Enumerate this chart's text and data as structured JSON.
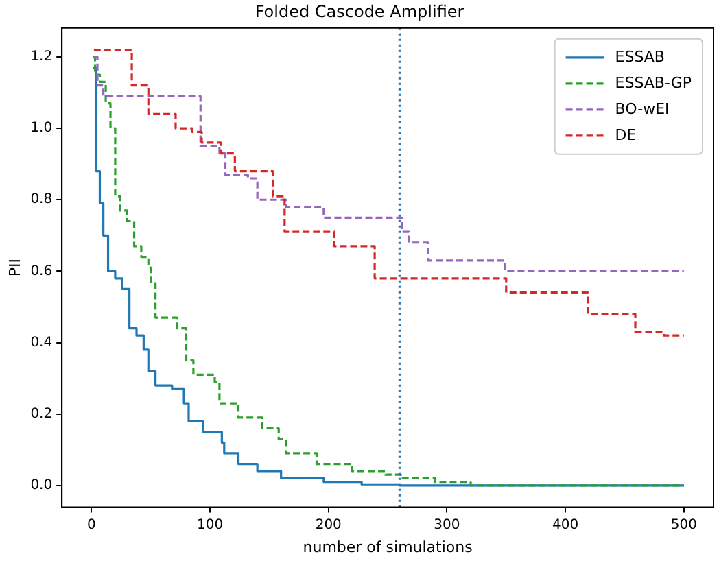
{
  "chart_data": {
    "type": "step",
    "title": "Folded Cascode Amplifier",
    "xlabel": "number of simulations",
    "ylabel": "PII",
    "xlim": [
      -25,
      525
    ],
    "xticks": [
      0,
      100,
      200,
      300,
      400,
      500
    ],
    "ylim": [
      -0.061,
      1.281
    ],
    "yticks": [
      {
        "value": 0,
        "label": "0.0"
      },
      {
        "value": 0.2,
        "label": "0.2"
      },
      {
        "value": 0.4,
        "label": "0.4"
      },
      {
        "value": 0.6,
        "label": "0.6"
      },
      {
        "value": 0.8,
        "label": "0.8"
      },
      {
        "value": 1,
        "label": "1.0"
      },
      {
        "value": 1.2,
        "label": "1.2"
      }
    ],
    "grid": false,
    "legend": "top right",
    "marker": "none",
    "ref_lines": [
      {
        "axis": "x",
        "value": 260,
        "color": "#1f77b4",
        "line_style": "dotted"
      }
    ],
    "series": [
      {
        "name": "ESSAB",
        "color": "#1f77b4",
        "line_style": "solid",
        "x": [
          1,
          4,
          7,
          10,
          14,
          20,
          26,
          32,
          38,
          44,
          48,
          54,
          68,
          78,
          82,
          94,
          110,
          112,
          124,
          140,
          160,
          196,
          228,
          260,
          500
        ],
        "values": [
          1.17,
          0.88,
          0.79,
          0.7,
          0.6,
          0.58,
          0.55,
          0.44,
          0.42,
          0.38,
          0.32,
          0.28,
          0.27,
          0.23,
          0.18,
          0.15,
          0.12,
          0.09,
          0.06,
          0.04,
          0.02,
          0.01,
          0.003,
          0,
          0
        ]
      },
      {
        "name": "ESSAB-GP",
        "color": "#2ca02c",
        "line_style": "dashed",
        "x": [
          1,
          3,
          7,
          12,
          16,
          20,
          24,
          30,
          36,
          42,
          48,
          50,
          54,
          72,
          80,
          86,
          104,
          108,
          124,
          144,
          158,
          164,
          190,
          220,
          248,
          261,
          290,
          320,
          500
        ],
        "values": [
          1.2,
          1.15,
          1.13,
          1.07,
          1,
          0.81,
          0.77,
          0.74,
          0.67,
          0.64,
          0.61,
          0.57,
          0.47,
          0.44,
          0.35,
          0.31,
          0.29,
          0.23,
          0.19,
          0.16,
          0.13,
          0.09,
          0.06,
          0.04,
          0.03,
          0.02,
          0.01,
          0,
          0
        ]
      },
      {
        "name": "BO-wEI",
        "color": "#9467bd",
        "line_style": "dashed",
        "x": [
          2,
          5,
          10,
          92,
          100,
          108,
          113,
          132,
          140,
          164,
          196,
          262,
          268,
          284,
          349,
          500
        ],
        "values": [
          1.2,
          1.12,
          1.09,
          0.95,
          0.95,
          0.93,
          0.87,
          0.86,
          0.8,
          0.78,
          0.75,
          0.71,
          0.68,
          0.63,
          0.6,
          0.6
        ]
      },
      {
        "name": "DE",
        "color": "#d62728",
        "line_style": "dashed",
        "x": [
          2,
          34,
          48,
          71,
          85,
          93,
          109,
          121,
          153,
          163,
          205,
          239,
          247,
          350,
          419,
          459,
          483,
          500
        ],
        "values": [
          1.22,
          1.12,
          1.04,
          1,
          0.99,
          0.96,
          0.93,
          0.88,
          0.81,
          0.71,
          0.67,
          0.58,
          0.58,
          0.54,
          0.48,
          0.43,
          0.42,
          0.42
        ]
      }
    ]
  }
}
